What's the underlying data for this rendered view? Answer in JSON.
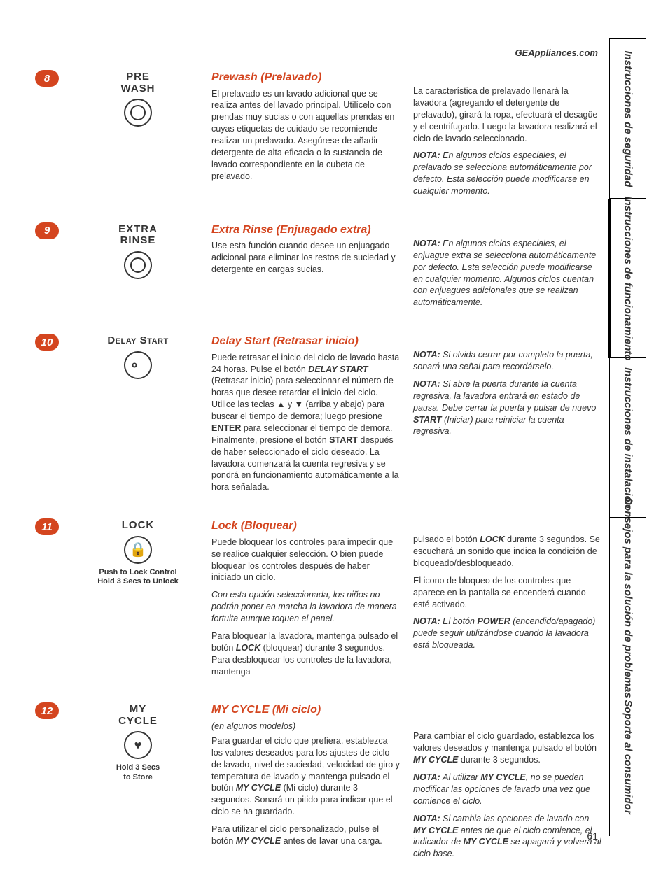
{
  "url": "GEAppliances.com",
  "page_number": "61",
  "colors": {
    "accent": "#d4451f"
  },
  "tabs": [
    "Instrucciones\nde seguridad",
    "Instrucciones\nde funcionamiento",
    "Instrucciones\nde instalación",
    "Consejos para la\nsolución de problemas",
    "Soporte al consumidor"
  ],
  "sections": [
    {
      "num": "8",
      "icon_label": "PRE\nWASH",
      "icon_type": "dial",
      "title": "Prewash (Prelavado)",
      "col1": [
        "El prelavado es un lavado adicional que se realiza antes del lavado principal. Utilícelo con prendas muy sucias o con aquellas prendas en cuyas etiquetas de cuidado se recomiende realizar un prelavado. Asegúrese de añadir detergente de alta eficacia o la sustancia de lavado correspondiente en la cubeta de prelavado."
      ],
      "col2": [
        "La característica de prelavado llenará la lavadora (agregando el detergente de prelavado), girará la ropa, efectuará el desagüe y el centrifugado. Luego la lavadora realizará el ciclo de lavado seleccionado.",
        "<span class='note-label'>NOTA:</span> <span class='ital'>En algunos ciclos especiales, el prelavado se selecciona automáticamente por defecto. Esta selección puede modificarse en cualquier momento.</span>"
      ]
    },
    {
      "num": "9",
      "icon_label": "EXTRA\nRINSE",
      "icon_type": "dial",
      "title": "Extra Rinse (Enjuagado extra)",
      "col1": [
        "Use esta función cuando desee un enjuagado adicional para eliminar los restos de suciedad y detergente en cargas sucias."
      ],
      "col2": [
        "<span class='note-label'>NOTA:</span> <span class='ital'>En algunos ciclos especiales, el enjuague extra se selecciona automáticamente por defecto. Esta selección puede modificarse en cualquier momento. Algunos ciclos cuentan con enjuagues adicionales que se realizan automáticamente.</span>"
      ]
    },
    {
      "num": "10",
      "icon_label_sc": "Delay Start",
      "icon_type": "dial-dot",
      "title": "Delay Start (Retrasar inicio)",
      "col1": [
        "Puede retrasar el inicio del ciclo de lavado hasta 24 horas. Pulse el botón <span class='bi'>DELAY START</span> (Retrasar inicio) para seleccionar el número de horas que desee retardar el inicio del ciclo. Utilice las teclas ▲ y ▼ (arriba y abajo) para buscar el tiempo de demora; luego presione <span class='b'>ENTER</span> para seleccionar el tiempo de demora. Finalmente, presione el botón <span class='b'>START</span> después de haber seleccionado el ciclo deseado. La lavadora comenzará la cuenta regresiva y se pondrá en funcionamiento automáticamente a la hora señalada."
      ],
      "col2": [
        "<span class='note-label'>NOTA:</span> <span class='ital'>Si olvida cerrar por completo la puerta, sonará una señal para recordárselo.</span>",
        "<span class='note-label'>NOTA:</span> <span class='ital'>Si abre la puerta durante la cuenta regresiva, la lavadora entrará en estado de pausa. Debe cerrar la puerta y pulsar de nuevo <span class='b'>START</span> (Iniciar) para reiniciar la cuenta regresiva.</span>"
      ]
    },
    {
      "num": "11",
      "icon_label": "LOCK",
      "icon_type": "lock",
      "icon_sub": "Push to Lock Control\nHold 3 Secs to Unlock",
      "title": "Lock (Bloquear)",
      "col1": [
        "Puede bloquear los controles para impedir que se realice cualquier selección. O bien puede bloquear los controles después de haber iniciado un ciclo.",
        "<span class='ital'>Con esta opción seleccionada, los niños no podrán poner en marcha la lavadora de manera fortuita aunque toquen el panel.</span>",
        "Para bloquear la lavadora, mantenga pulsado el botón <span class='bi'>LOCK</span> (bloquear) durante 3 segundos. Para desbloquear los controles de la lavadora, mantenga"
      ],
      "col2": [
        "pulsado el botón <span class='bi'>LOCK</span> durante 3 segundos. Se escuchará un sonido que indica la condición de bloqueado/desbloqueado.",
        "El icono de bloqueo de los controles que aparece en la pantalla se encenderá cuando esté activado.",
        "<span class='note-label'>NOTA:</span> <span class='ital'>El botón <span class='b'>POWER</span> (encendido/apagado) puede seguir utilizándose cuando la lavadora está bloqueada.</span>"
      ]
    },
    {
      "num": "12",
      "icon_label": "MY\nCYCLE",
      "icon_type": "heart",
      "icon_sub": "Hold 3 Secs\nto Store",
      "title": "MY CYCLE (Mi ciclo)",
      "subtitle": "(en algunos modelos)",
      "col1": [
        "Para guardar el ciclo que prefiera, establezca los valores deseados para los ajustes de ciclo de lavado, nivel de suciedad, velocidad de giro y temperatura de lavado y mantenga pulsado el botón <span class='bi'>MY CYCLE</span> (Mi ciclo) durante 3 segundos. Sonará un pitido para indicar que el ciclo se ha guardado.",
        "Para utilizar el ciclo personalizado, pulse el botón <span class='bi'>MY CYCLE</span> antes de lavar una carga."
      ],
      "col2": [
        "Para cambiar el ciclo guardado, establezca los valores deseados y mantenga pulsado el botón <span class='bi'>MY CYCLE</span> durante 3 segundos.",
        "<span class='note-label'>NOTA:</span> <span class='ital'>Al utilizar <span class='b'>MY CYCLE</span>, no se pueden modificar las opciones de lavado una vez que comience el ciclo.</span>",
        "<span class='note-label'>NOTA:</span> <span class='ital'>Si cambia las opciones de lavado con <span class='b'>MY CYCLE</span> antes de que el ciclo comience, el indicador de <span class='b'>MY CYCLE</span> se apagará y volverá al ciclo base.</span>"
      ]
    }
  ]
}
